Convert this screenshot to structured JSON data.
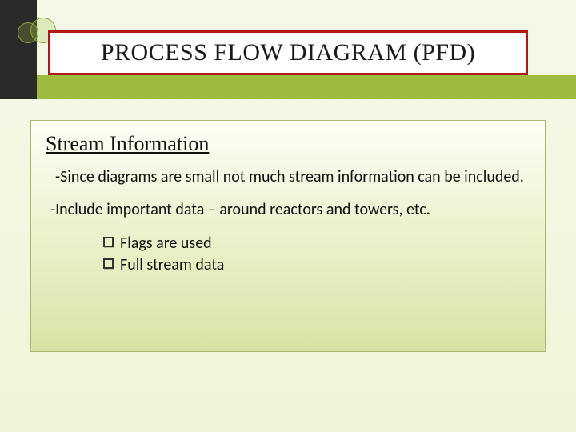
{
  "colors": {
    "title_border": "#b01818",
    "accent_green": "#9dbb3e",
    "accent_dark": "#2a2a2a",
    "content_border": "#a9b86e",
    "content_grad_top": "#fdfef6",
    "content_grad_mid": "#e7efc4",
    "content_grad_bot": "#d7e3a6",
    "page_grad_top": "#f5f9e8",
    "page_grad_bot": "#eef5d8"
  },
  "typography": {
    "title_font": "Times New Roman",
    "title_size_pt": 22,
    "subtitle_size_pt": 20,
    "body_font": "Calibri",
    "body_size_pt": 15
  },
  "slide": {
    "title": "PROCESS FLOW DIAGRAM (PFD)",
    "subtitle": "Stream Information",
    "paragraphs": [
      "-Since diagrams are small not much stream information can be included.",
      "-Include important data – around reactors and towers, etc."
    ],
    "bullets": [
      "Flags are used",
      "Full stream data"
    ]
  }
}
